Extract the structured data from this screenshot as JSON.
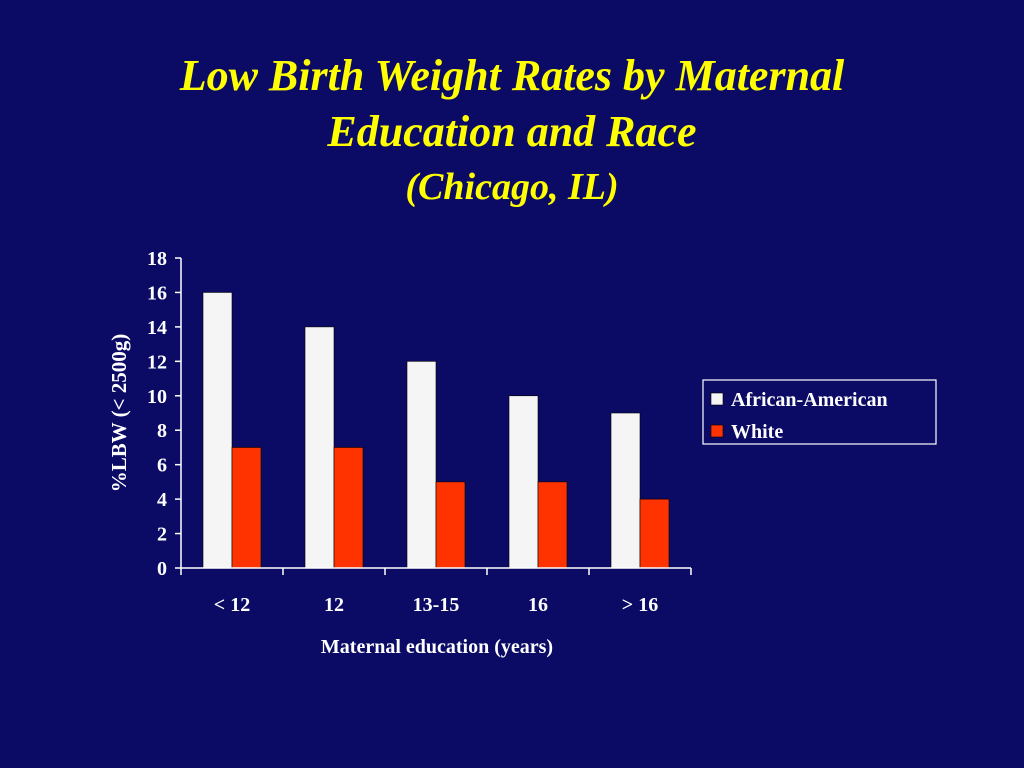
{
  "title_line1": "Low Birth Weight Rates by Maternal",
  "title_line2": "Education and Race",
  "subtitle": "(Chicago, IL)",
  "colors": {
    "background": "#0b0b66",
    "title": "#ffff00",
    "text": "#ffffff",
    "axis": "#ffffff",
    "african_american": "#f5f5f5",
    "white": "#ff3300"
  },
  "chart_data": {
    "type": "bar",
    "xlabel": "Maternal education (years)",
    "ylabel": "%LBW (< 2500g)",
    "categories": [
      "< 12",
      "12",
      "13-15",
      "16",
      "> 16"
    ],
    "ylim": [
      0,
      18
    ],
    "yticks": [
      0,
      2,
      4,
      6,
      8,
      10,
      12,
      14,
      16,
      18
    ],
    "grid": false,
    "legend_position": "right",
    "series": [
      {
        "name": "African-American",
        "color": "#f5f5f5",
        "values": [
          16,
          14,
          12,
          10,
          9
        ]
      },
      {
        "name": "White",
        "color": "#ff3300",
        "values": [
          7,
          7,
          5,
          5,
          4
        ]
      }
    ]
  }
}
